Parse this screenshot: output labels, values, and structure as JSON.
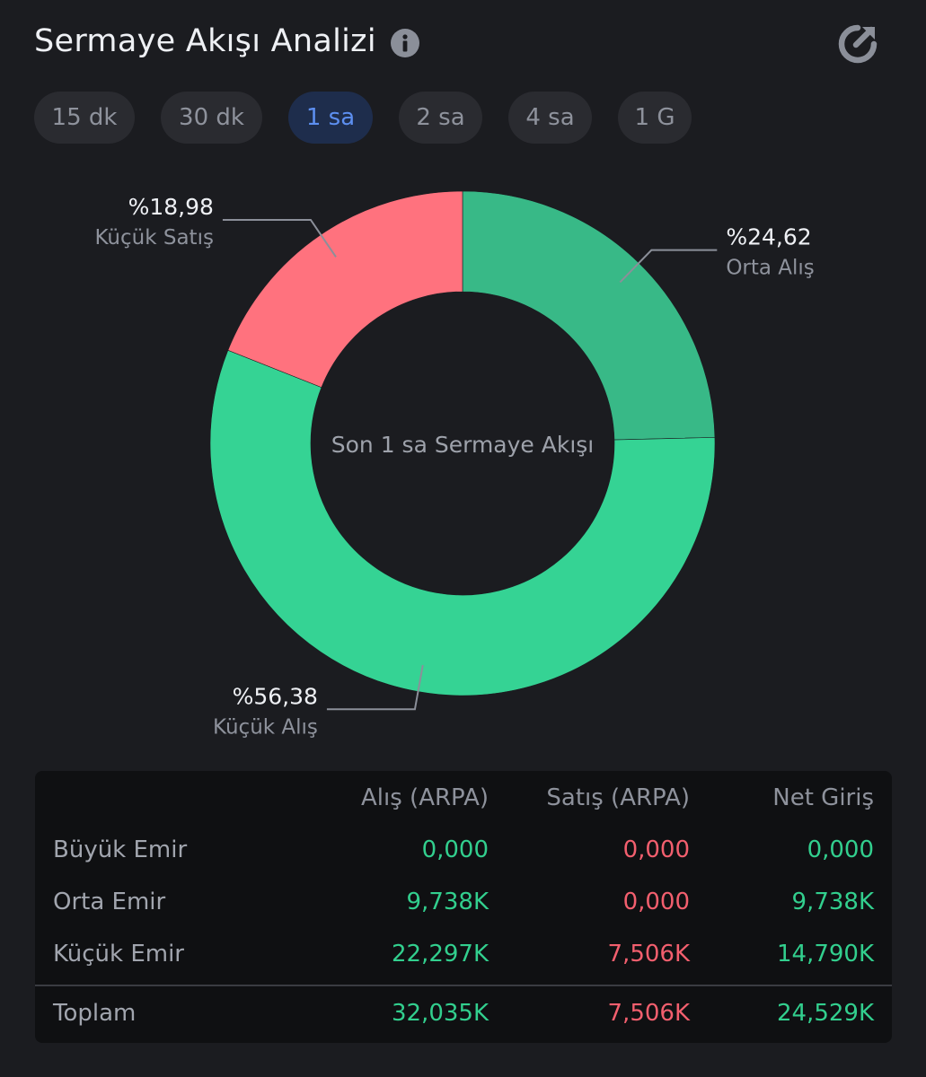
{
  "header": {
    "title": "Sermaye Akışı Analizi",
    "info_icon": "info-icon",
    "refresh_icon": "refresh-icon"
  },
  "tabs": [
    {
      "label": "15 dk",
      "active": false
    },
    {
      "label": "30 dk",
      "active": false
    },
    {
      "label": "1 sa",
      "active": true
    },
    {
      "label": "2 sa",
      "active": false
    },
    {
      "label": "4 sa",
      "active": false
    },
    {
      "label": "1 G",
      "active": false
    }
  ],
  "colors": {
    "background": "#1b1c20",
    "orta_alis": "#38b987",
    "kucuk_alis": "#35d394",
    "kucuk_satis": "#ff727e",
    "positive": "#32cf8e",
    "negative": "#f25f6e",
    "active_tab": "#5d8ff0"
  },
  "chart_data": {
    "type": "pie",
    "variant": "donut",
    "center_label": "Son 1 sa Sermaye Akışı",
    "slices": [
      {
        "name": "Orta Alış",
        "value": 24.62,
        "label": "%24,62",
        "color": "#38b987"
      },
      {
        "name": "Küçük Alış",
        "value": 56.38,
        "label": "%56,38",
        "color": "#35d394"
      },
      {
        "name": "Küçük Satış",
        "value": 18.98,
        "label": "%18,98",
        "color": "#ff727e"
      }
    ]
  },
  "table": {
    "headers": [
      "",
      "Alış (ARPA)",
      "Satış (ARPA)",
      "Net Giriş"
    ],
    "rows": [
      {
        "label": "Büyük Emir",
        "buy": "0,000",
        "sell": "0,000",
        "net": "0,000"
      },
      {
        "label": "Orta Emir",
        "buy": "9,738K",
        "sell": "0,000",
        "net": "9,738K"
      },
      {
        "label": "Küçük Emir",
        "buy": "22,297K",
        "sell": "7,506K",
        "net": "14,790K"
      }
    ],
    "total": {
      "label": "Toplam",
      "buy": "32,035K",
      "sell": "7,506K",
      "net": "24,529K"
    }
  }
}
